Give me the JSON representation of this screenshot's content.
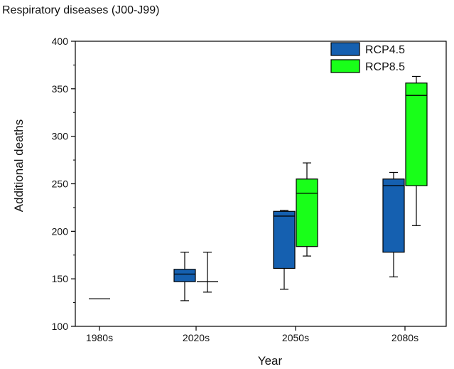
{
  "chart_data": {
    "type": "boxplot",
    "title": "Respiratory diseases (J00-J99)",
    "xlabel": "Year",
    "ylabel": "Additional deaths",
    "ylim": [
      100,
      400
    ],
    "yticks": [
      100,
      150,
      200,
      250,
      300,
      350,
      400
    ],
    "categories": [
      "1980s",
      "2020s",
      "2050s",
      "2080s"
    ],
    "legend_position": "top-right",
    "baseline": {
      "category": "1980s",
      "value": 129
    },
    "series": [
      {
        "name": "RCP4.5",
        "color": "#1560b0",
        "boxes": [
          {
            "category": "2020s",
            "min": 127,
            "q1": 147,
            "median": 155,
            "q3": 160,
            "max": 178
          },
          {
            "category": "2050s",
            "min": 139,
            "q1": 161,
            "median": 216,
            "q3": 221,
            "max": 222
          },
          {
            "category": "2080s",
            "min": 152,
            "q1": 178,
            "median": 248,
            "q3": 255,
            "max": 262
          }
        ]
      },
      {
        "name": "RCP8.5",
        "color": "#19ff19",
        "boxes": [
          {
            "category": "2020s",
            "min": 136,
            "q1": 147,
            "median": 147,
            "q3": 147,
            "max": 178
          },
          {
            "category": "2050s",
            "min": 174,
            "q1": 184,
            "median": 240,
            "q3": 255,
            "max": 272
          },
          {
            "category": "2080s",
            "min": 206,
            "q1": 248,
            "median": 343,
            "q3": 356,
            "max": 363
          }
        ]
      }
    ]
  }
}
